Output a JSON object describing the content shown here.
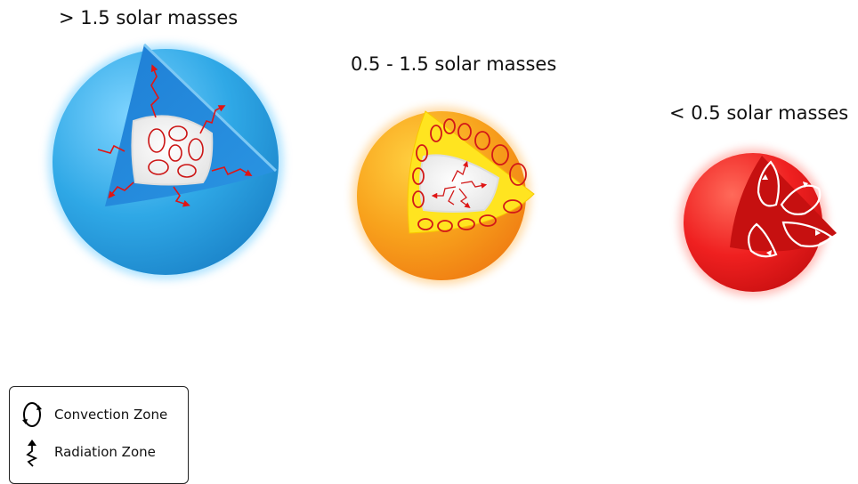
{
  "stars": [
    {
      "label": "> 1.5 solar masses",
      "core": "convection",
      "envelope": "radiation",
      "color": "#33aee8"
    },
    {
      "label": "0.5 - 1.5 solar masses",
      "core": "radiation",
      "envelope": "convection",
      "color": "#f7a11e"
    },
    {
      "label": "< 0.5 solar masses",
      "core": "convection",
      "envelope": "convection",
      "color": "#ee1b1b"
    }
  ],
  "legend": {
    "convection": "Convection Zone",
    "radiation": "Radiation Zone"
  }
}
